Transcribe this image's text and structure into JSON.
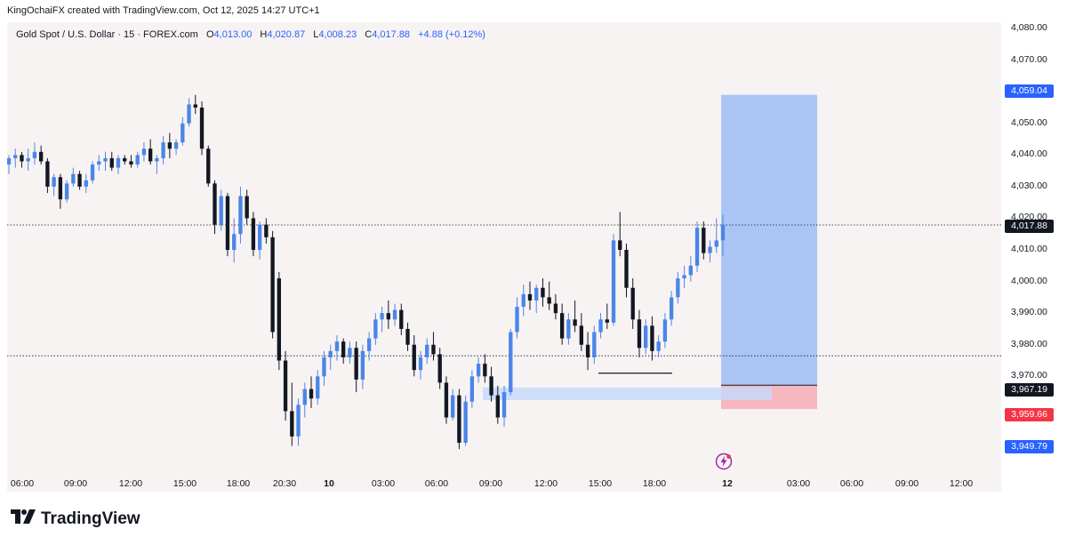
{
  "header": {
    "byline": "KingOchaiFX created with TradingView.com, Oct 12, 2025 14:27 UTC+1"
  },
  "legend": {
    "symbol": "Gold Spot / U.S. Dollar · 15 · FOREX.com",
    "open_label": "O",
    "open": "4,013.00",
    "high_label": "H",
    "high": "4,020.87",
    "low_label": "L",
    "low": "4,008.23",
    "close_label": "C",
    "close": "4,017.88",
    "change": "+4.88 (+0.12%)"
  },
  "price_tags": {
    "target": "4,059.04",
    "current": "4,017.88",
    "entry": "3,967.19",
    "stop": "3,959.66",
    "level": "3,949.79"
  },
  "brand": {
    "name": "TradingView",
    "icon": "tradingview-logo-icon"
  },
  "colors": {
    "up": "#4a86e8",
    "down": "#131722",
    "target_zone": "#aac5f5",
    "stop_zone": "#f7b7be",
    "target_tag": "#2962ff",
    "stop_tag": "#f23645",
    "current_tag": "#131722",
    "demand_zone": "#c7d9f9"
  },
  "chart_data": {
    "type": "candlestick",
    "symbol": "Gold Spot / U.S. Dollar",
    "interval": "15",
    "ylim": [
      3940,
      4082
    ],
    "y_ticks": [
      "3,970.00",
      "3,980.00",
      "3,990.00",
      "4,000.00",
      "4,010.00",
      "4,020.00",
      "4,030.00",
      "4,040.00",
      "4,050.00",
      "4,060.00",
      "4,070.00",
      "4,080.00"
    ],
    "x_ticks": [
      "06:00",
      "09:00",
      "12:00",
      "15:00",
      "18:00",
      "20:30",
      "10",
      "03:00",
      "06:00",
      "09:00",
      "12:00",
      "15:00",
      "18:00",
      "12",
      "03:00",
      "06:00",
      "09:00",
      "12:00"
    ],
    "horizontal_lines": [
      {
        "value": 4017.88,
        "style": "dotted"
      },
      {
        "value": 3976.5,
        "style": "dotted"
      }
    ],
    "long_position": {
      "entry": 3967.19,
      "target": 4059.04,
      "stop": 3959.66
    },
    "demand_zone": {
      "top": 3966.5,
      "bottom": 3962.5
    },
    "support_line": {
      "value": 3971.0
    },
    "candles": [
      [
        4037,
        4040,
        4034,
        4039
      ],
      [
        4039,
        4042,
        4036,
        4040
      ],
      [
        4040,
        4041,
        4036,
        4038
      ],
      [
        4038,
        4042,
        4035,
        4039
      ],
      [
        4039,
        4044,
        4037,
        4041
      ],
      [
        4041,
        4043,
        4037,
        4038
      ],
      [
        4038,
        4039,
        4028,
        4030
      ],
      [
        4030,
        4034,
        4027,
        4033
      ],
      [
        4033,
        4034,
        4023,
        4026
      ],
      [
        4026,
        4032,
        4025,
        4031
      ],
      [
        4031,
        4036,
        4030,
        4034
      ],
      [
        4034,
        4035,
        4029,
        4030
      ],
      [
        4030,
        4034,
        4028,
        4032
      ],
      [
        4032,
        4038,
        4031,
        4037
      ],
      [
        4037,
        4040,
        4035,
        4038
      ],
      [
        4038,
        4041,
        4035,
        4039
      ],
      [
        4039,
        4041,
        4035,
        4036
      ],
      [
        4036,
        4040,
        4034,
        4039
      ],
      [
        4039,
        4040,
        4037,
        4038
      ],
      [
        4038,
        4040,
        4036,
        4037
      ],
      [
        4037,
        4041,
        4036,
        4040
      ],
      [
        4040,
        4044,
        4038,
        4042
      ],
      [
        4042,
        4045,
        4037,
        4038
      ],
      [
        4038,
        4040,
        4034,
        4039
      ],
      [
        4039,
        4046,
        4037,
        4044
      ],
      [
        4044,
        4047,
        4039,
        4042
      ],
      [
        4042,
        4045,
        4040,
        4044
      ],
      [
        4044,
        4052,
        4043,
        4050
      ],
      [
        4050,
        4058,
        4049,
        4056
      ],
      [
        4056,
        4059,
        4053,
        4055
      ],
      [
        4055,
        4057,
        4040,
        4042
      ],
      [
        4042,
        4043,
        4030,
        4031
      ],
      [
        4031,
        4032,
        4015,
        4018
      ],
      [
        4018,
        4029,
        4016,
        4027
      ],
      [
        4027,
        4028,
        4008,
        4010
      ],
      [
        4010,
        4020,
        4006,
        4015
      ],
      [
        4015,
        4030,
        4012,
        4027
      ],
      [
        4027,
        4029,
        4018,
        4020
      ],
      [
        4020,
        4022,
        4008,
        4010
      ],
      [
        4010,
        4019,
        4007,
        4018
      ],
      [
        4018,
        4020,
        4012,
        4014
      ],
      [
        4014,
        4016,
        3982,
        3984
      ],
      [
        4001,
        4003,
        3972,
        3975
      ],
      [
        3975,
        3978,
        3956,
        3959
      ],
      [
        3959,
        3968,
        3948,
        3951
      ],
      [
        3951,
        3963,
        3948,
        3961
      ],
      [
        3961,
        3968,
        3957,
        3966
      ],
      [
        3966,
        3970,
        3960,
        3963
      ],
      [
        3963,
        3972,
        3961,
        3970
      ],
      [
        3970,
        3978,
        3967,
        3976
      ],
      [
        3976,
        3980,
        3972,
        3978
      ],
      [
        3978,
        3983,
        3975,
        3981
      ],
      [
        3981,
        3982,
        3974,
        3976
      ],
      [
        3976,
        3981,
        3974,
        3979
      ],
      [
        3979,
        3981,
        3965,
        3969
      ],
      [
        3969,
        3980,
        3966,
        3978
      ],
      [
        3978,
        3984,
        3975,
        3982
      ],
      [
        3982,
        3990,
        3980,
        3988
      ],
      [
        3988,
        3992,
        3984,
        3990
      ],
      [
        3990,
        3994,
        3985,
        3988
      ],
      [
        3988,
        3993,
        3986,
        3991
      ],
      [
        3991,
        3993,
        3983,
        3985
      ],
      [
        3985,
        3987,
        3978,
        3980
      ],
      [
        3980,
        3983,
        3970,
        3972
      ],
      [
        3972,
        3978,
        3969,
        3976
      ],
      [
        3976,
        3982,
        3974,
        3980
      ],
      [
        3980,
        3984,
        3975,
        3977
      ],
      [
        3977,
        3979,
        3966,
        3968
      ],
      [
        3968,
        3970,
        3955,
        3957
      ],
      [
        3957,
        3966,
        3956,
        3964
      ],
      [
        3964,
        3966,
        3947,
        3949
      ],
      [
        3949,
        3964,
        3948,
        3962
      ],
      [
        3962,
        3972,
        3960,
        3970
      ],
      [
        3970,
        3976,
        3968,
        3974
      ],
      [
        3974,
        3977,
        3968,
        3970
      ],
      [
        3970,
        3973,
        3962,
        3964
      ],
      [
        3964,
        3967,
        3955,
        3957
      ],
      [
        3957,
        3967,
        3954,
        3965
      ],
      [
        3965,
        3985,
        3964,
        3984
      ],
      [
        3984,
        3995,
        3982,
        3992
      ],
      [
        3992,
        3999,
        3989,
        3996
      ],
      [
        3996,
        4000,
        3991,
        3994
      ],
      [
        3994,
        3999,
        3990,
        3998
      ],
      [
        3998,
        4001,
        3992,
        3995
      ],
      [
        3995,
        4000,
        3991,
        3993
      ],
      [
        3993,
        3996,
        3988,
        3990
      ],
      [
        3990,
        3993,
        3980,
        3982
      ],
      [
        3982,
        3990,
        3980,
        3988
      ],
      [
        3988,
        3994,
        3984,
        3986
      ],
      [
        3986,
        3990,
        3978,
        3980
      ],
      [
        3980,
        3984,
        3972,
        3976
      ],
      [
        3976,
        3986,
        3974,
        3984
      ],
      [
        3984,
        3990,
        3982,
        3988
      ],
      [
        3988,
        3993,
        3985,
        3987
      ],
      [
        3987,
        4015,
        3986,
        4013
      ],
      [
        4013,
        4022,
        4008,
        4010
      ],
      [
        4010,
        4012,
        3995,
        3998
      ],
      [
        3998,
        4001,
        3985,
        3988
      ],
      [
        3988,
        3991,
        3976,
        3979
      ],
      [
        3979,
        3988,
        3977,
        3986
      ],
      [
        3986,
        3989,
        3975,
        3978
      ],
      [
        3978,
        3983,
        3976,
        3981
      ],
      [
        3981,
        3990,
        3979,
        3988
      ],
      [
        3988,
        3997,
        3986,
        3995
      ],
      [
        3995,
        4003,
        3993,
        4001
      ],
      [
        4001,
        4005,
        3998,
        4002
      ],
      [
        4002,
        4008,
        4000,
        4005
      ],
      [
        4005,
        4019,
        4003,
        4017
      ],
      [
        4017,
        4019,
        4007,
        4009
      ],
      [
        4009,
        4013,
        4006,
        4011
      ],
      [
        4011,
        4020,
        4009,
        4013
      ],
      [
        4013,
        4021,
        4008,
        4018
      ]
    ]
  }
}
